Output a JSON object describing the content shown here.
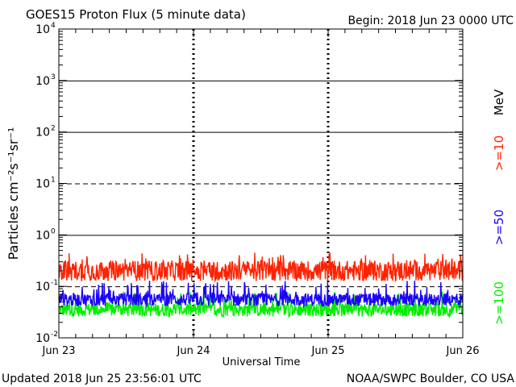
{
  "header": {
    "title": "GOES15 Proton Flux (5 minute data)",
    "begin": "Begin: 2018 Jun 23 0000 UTC"
  },
  "footer": {
    "updated": "Updated 2018 Jun 25 23:56:01 UTC",
    "credit": "NOAA/SWPC Boulder, CO USA"
  },
  "colors": {
    "ge10": "#ff2200",
    "ge50": "#1a00ff",
    "ge100": "#00ee00",
    "axis": "#000000",
    "background": "#ffffff"
  },
  "chart_data": {
    "type": "line",
    "title": "GOES15 Proton Flux (5 minute data)",
    "xlabel": "Universal Time",
    "ylabel": "Particles cm⁻²s⁻¹sr⁻¹",
    "yscale": "log",
    "ylim": [
      0.01,
      10000
    ],
    "y_ticks": [
      {
        "base": "10",
        "exp": "4"
      },
      {
        "base": "10",
        "exp": "3"
      },
      {
        "base": "10",
        "exp": "2"
      },
      {
        "base": "10",
        "exp": "1"
      },
      {
        "base": "10",
        "exp": "0"
      },
      {
        "base": "10",
        "exp": "-1"
      },
      {
        "base": "10",
        "exp": "-2"
      }
    ],
    "x_ticks": [
      "Jun 23",
      "Jun 24",
      "Jun 25",
      "Jun 26"
    ],
    "xlim": [
      "2018-06-23 00:00",
      "2018-06-26 00:00"
    ],
    "grid": "horizontal lines at decades, dashed at 10 pfu and 0.1 pfu; dotted vertical at day boundaries",
    "units_label": "MeV",
    "series": [
      {
        "name": ">=10",
        "color": "#ff2200",
        "typical": 0.2,
        "low": 0.12,
        "high": 0.45
      },
      {
        "name": ">=50",
        "color": "#1a00ff",
        "typical": 0.055,
        "low": 0.04,
        "high": 0.13
      },
      {
        "name": ">=100",
        "color": "#00ee00",
        "typical": 0.035,
        "low": 0.025,
        "high": 0.08
      }
    ]
  }
}
